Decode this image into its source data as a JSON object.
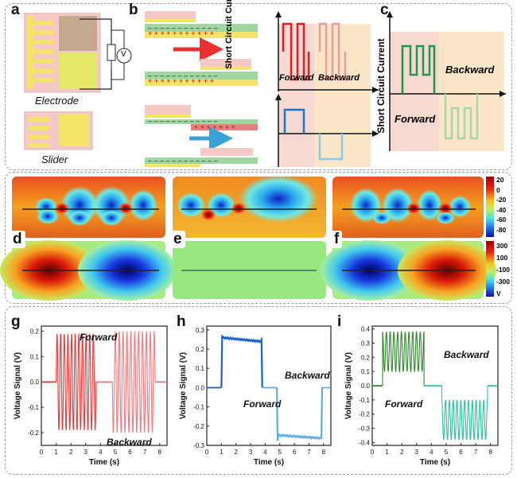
{
  "panel_labels": {
    "a": "a",
    "b": "b",
    "c": "c",
    "d": "d",
    "e": "e",
    "f": "f",
    "g": "g",
    "h": "h",
    "i": "i"
  },
  "panel_a": {
    "electrode_label": "Electrode",
    "slider_label": "Slider",
    "meter_symbol": "V"
  },
  "panel_b": {
    "ylabel": "Short Circuit Current",
    "forward": "Forward",
    "backward": "Backward"
  },
  "panel_c": {
    "ylabel": "Short Circuit Current",
    "forward": "Forward",
    "backward": "Backward"
  },
  "colorbars": {
    "top": {
      "ticks": [
        "20",
        "0",
        "-20",
        "-40",
        "-60",
        "-80"
      ]
    },
    "bottom": {
      "ticks": [
        "300",
        "100",
        "-100",
        "-300"
      ],
      "unit": "V"
    }
  },
  "chart_data": [
    {
      "type": "line",
      "panel": "g",
      "xlabel": "Time (s)",
      "ylabel": "Voltage Signal (V)",
      "xlim": [
        0,
        8.5
      ],
      "ylim": [
        -0.25,
        0.22
      ],
      "xticks": [
        "0",
        "1",
        "2",
        "3",
        "4",
        "5",
        "6",
        "7",
        "8"
      ],
      "yticks": [
        "0.2",
        "0.1",
        "0.0",
        "-0.1",
        "-0.2"
      ],
      "annotations": [
        "Forward",
        "Backward"
      ],
      "series": [
        {
          "color": "#e03b3b",
          "segment": "forward",
          "t_start": 1.0,
          "t_end": 3.7,
          "cycles": 11,
          "amplitude": 0.19
        },
        {
          "color": "#f07a80",
          "segment": "backward",
          "t_start": 4.8,
          "t_end": 7.7,
          "cycles": 11,
          "amplitude": 0.2
        }
      ]
    },
    {
      "type": "line",
      "panel": "h",
      "xlabel": "Time (s)",
      "ylabel": "Voltage Signal (V)",
      "xlim": [
        0,
        8.5
      ],
      "ylim": [
        -0.3,
        0.32
      ],
      "xticks": [
        "0",
        "1",
        "2",
        "3",
        "4",
        "5",
        "6",
        "7",
        "8"
      ],
      "yticks": [
        "0.3",
        "0.2",
        "0.1",
        "0.0",
        "-0.1",
        "-0.2",
        "-0.3"
      ],
      "annotations": [
        "Forward",
        "Backward"
      ],
      "series": [
        {
          "color": "#1a63c6",
          "segment": "forward",
          "t_start": 1.0,
          "t_end": 3.8,
          "level": 0.25
        },
        {
          "color": "#5aacea",
          "segment": "backward",
          "t_start": 4.8,
          "t_end": 7.9,
          "level": -0.26
        }
      ]
    },
    {
      "type": "line",
      "panel": "i",
      "xlabel": "Time (s)",
      "ylabel": "Voltage Signal (V)",
      "xlim": [
        0,
        8.5
      ],
      "ylim": [
        -0.42,
        0.42
      ],
      "xticks": [
        "0",
        "1",
        "2",
        "3",
        "4",
        "5",
        "6",
        "7",
        "8"
      ],
      "yticks": [
        "0.4",
        "0.3",
        "0.2",
        "0.1",
        "0.0",
        "-0.1",
        "-0.2",
        "-0.3",
        "-0.4"
      ],
      "annotations": [
        "Forward",
        "Backward"
      ],
      "series": [
        {
          "color": "#2e8a2e",
          "segment": "forward",
          "t_start": 0.7,
          "t_end": 3.5,
          "cycles": 11,
          "high": 0.38,
          "low": 0.1
        },
        {
          "color": "#2ec4a0",
          "segment": "backward",
          "t_start": 4.7,
          "t_end": 7.8,
          "cycles": 12,
          "high": -0.1,
          "low": -0.38
        }
      ]
    }
  ]
}
